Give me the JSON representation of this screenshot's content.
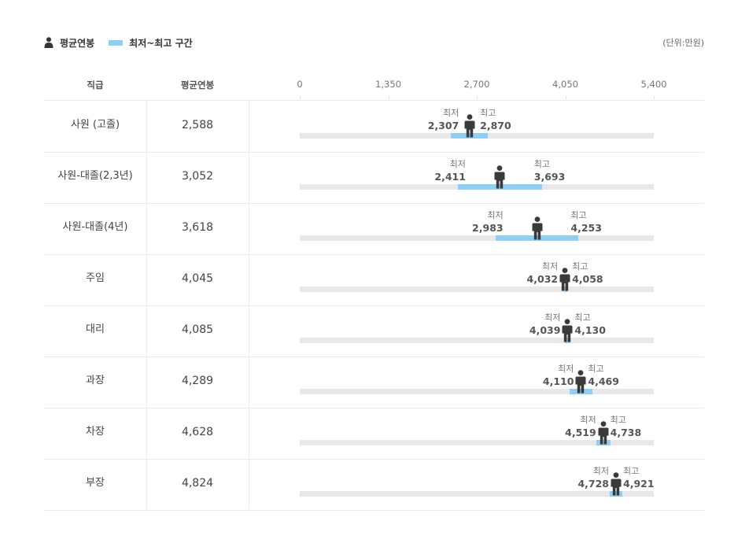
{
  "legend": {
    "average_label": "평균연봉",
    "range_label": "최저~최고 구간"
  },
  "unit": "(단위:만원)",
  "headers": {
    "rank": "직급",
    "average": "평균연봉"
  },
  "colors": {
    "range": "#8ecff8",
    "track": "#e8e8e8",
    "person": "#3a3a3a"
  },
  "chart_data": {
    "type": "range-bar",
    "xlim": [
      0,
      5400
    ],
    "ticks": [
      "0",
      "1,350",
      "2,700",
      "4,050",
      "5,400"
    ],
    "min_label": "최저",
    "max_label": "최고",
    "rows": [
      {
        "rank": "사원 (고졸)",
        "average": 2588,
        "average_text": "2,588",
        "min": 2307,
        "min_text": "2,307",
        "max": 2870,
        "max_text": "2,870"
      },
      {
        "rank": "사원-대졸(2,3년)",
        "average": 3052,
        "average_text": "3,052",
        "min": 2411,
        "min_text": "2,411",
        "max": 3693,
        "max_text": "3,693"
      },
      {
        "rank": "사원-대졸(4년)",
        "average": 3618,
        "average_text": "3,618",
        "min": 2983,
        "min_text": "2,983",
        "max": 4253,
        "max_text": "4,253"
      },
      {
        "rank": "주임",
        "average": 4045,
        "average_text": "4,045",
        "min": 4032,
        "min_text": "4,032",
        "max": 4058,
        "max_text": "4,058"
      },
      {
        "rank": "대리",
        "average": 4085,
        "average_text": "4,085",
        "min": 4039,
        "min_text": "4,039",
        "max": 4130,
        "max_text": "4,130"
      },
      {
        "rank": "과장",
        "average": 4289,
        "average_text": "4,289",
        "min": 4110,
        "min_text": "4,110",
        "max": 4469,
        "max_text": "4,469"
      },
      {
        "rank": "차장",
        "average": 4628,
        "average_text": "4,628",
        "min": 4519,
        "min_text": "4,519",
        "max": 4738,
        "max_text": "4,738"
      },
      {
        "rank": "부장",
        "average": 4824,
        "average_text": "4,824",
        "min": 4728,
        "min_text": "4,728",
        "max": 4921,
        "max_text": "4,921"
      }
    ]
  }
}
